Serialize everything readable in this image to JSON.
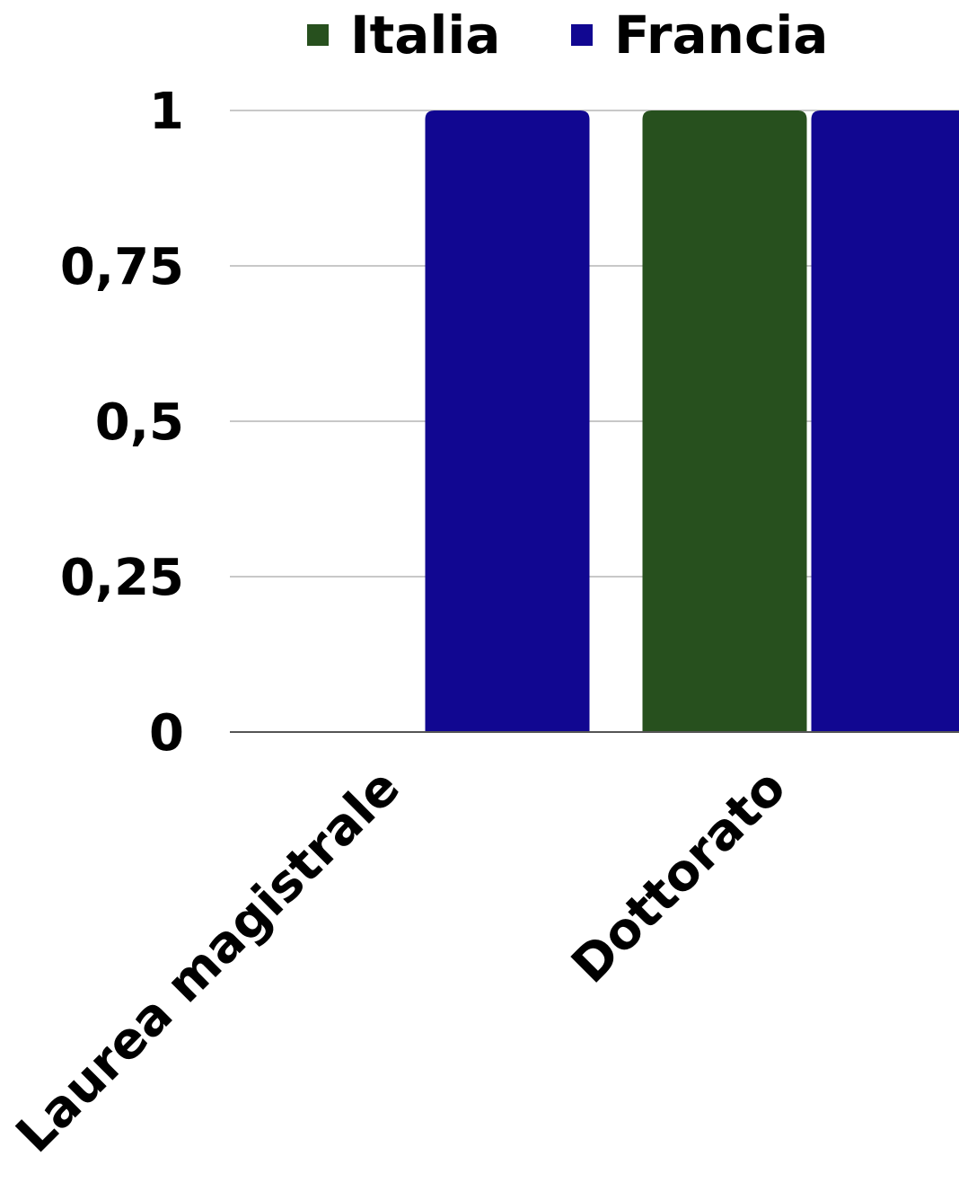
{
  "chart_data": {
    "type": "bar",
    "categories": [
      "Laurea magistrale",
      "Dottorato"
    ],
    "series": [
      {
        "name": "Italia",
        "values": [
          0,
          1
        ],
        "color": "#27501e"
      },
      {
        "name": "Francia",
        "values": [
          1,
          1
        ],
        "color": "#110791"
      }
    ],
    "ylim": [
      0,
      1
    ],
    "yticks": [
      {
        "value": 0,
        "label": "0"
      },
      {
        "value": 0.25,
        "label": "0,25"
      },
      {
        "value": 0.5,
        "label": "0,5"
      },
      {
        "value": 0.75,
        "label": "0,75"
      },
      {
        "value": 1,
        "label": "1"
      }
    ],
    "grid": true,
    "gridline_color": "#c8c8c8",
    "axis_color": "#555555",
    "legend_position": "top-center",
    "title": "",
    "xlabel": "",
    "ylabel": ""
  }
}
